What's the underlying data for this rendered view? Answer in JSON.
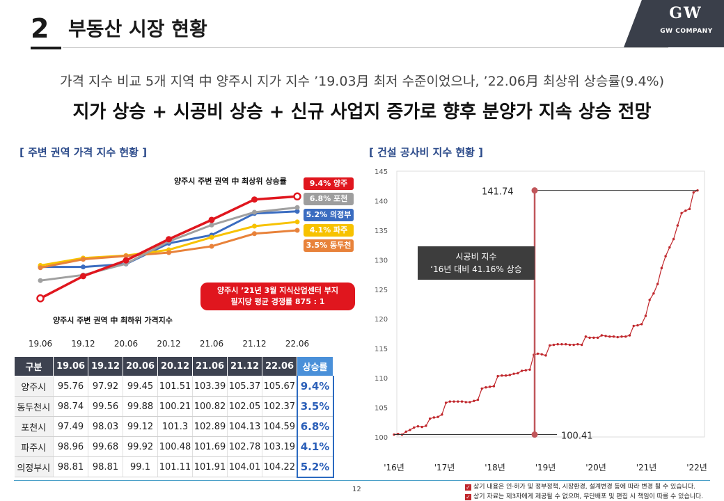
{
  "header": {
    "section_number": "2",
    "section_title": "부동산 시장 현황",
    "logo_mark": "GW",
    "logo_text": "GW COMPANY"
  },
  "summary": {
    "line1": "가격 지수 비교 5개 지역 中 양주시 지가 지수 ’19.03月 최저 수준이었으나, ’22.06月 최상위 상승률(9.4%)",
    "line2": "지가 상승 + 시공비 상승 + 신규 사업지 증가로 향후 분양가 지속 상승 전망"
  },
  "left_section": {
    "label": "[ 주변 권역 가격 지수 현황 ]",
    "annotation_top": "양주시 주변 권역 中 최상위 상승률",
    "annotation_bottom": "양주시 주변 권역 中 최하위 가격지수",
    "red_box_line1": "양주시 ’21년 3월 지식산업센터 부지",
    "red_box_line2": "필지당 평균 경쟁률 875 : 1",
    "callouts": [
      {
        "text": "9.4% 양주",
        "color": "#e0161e"
      },
      {
        "text": "6.8% 포천",
        "color": "#9e9e9e"
      },
      {
        "text": "5.2% 의정부",
        "color": "#3a6cc0"
      },
      {
        "text": "4.1% 파주",
        "color": "#f7c200"
      },
      {
        "text": "3.5% 동두천",
        "color": "#e8823a"
      }
    ]
  },
  "chart_data": [
    {
      "type": "line",
      "title": "주변 권역 가격 지수 현황",
      "categories": [
        "19.06",
        "19.12",
        "20.06",
        "20.12",
        "21.06",
        "21.12",
        "22.06"
      ],
      "series": [
        {
          "name": "양주시",
          "color": "#e0161e",
          "values": [
            95.76,
            97.92,
            99.45,
            101.51,
            103.39,
            105.37,
            105.67
          ]
        },
        {
          "name": "동두천시",
          "color": "#e8823a",
          "values": [
            98.74,
            99.56,
            99.88,
            100.21,
            100.82,
            102.05,
            102.37
          ]
        },
        {
          "name": "포천시",
          "color": "#a0a0a0",
          "values": [
            97.49,
            98.03,
            99.12,
            101.3,
            102.89,
            104.13,
            104.59
          ]
        },
        {
          "name": "파주시",
          "color": "#f7c200",
          "values": [
            98.96,
            99.68,
            99.92,
            100.48,
            101.69,
            102.78,
            103.19
          ]
        },
        {
          "name": "의정부시",
          "color": "#3a6cc0",
          "values": [
            98.81,
            98.81,
            99.1,
            101.11,
            101.91,
            104.01,
            104.22
          ]
        }
      ],
      "ylim": [
        95,
        106.5
      ]
    },
    {
      "type": "line",
      "title": "건설 공사비 지수 현황",
      "x_labels": [
        "'16년",
        "'17년",
        "'18년",
        "'19년",
        "'20년",
        "'21년",
        "'22년"
      ],
      "y_ticks": [
        "145",
        "140",
        "135",
        "130",
        "125",
        "120",
        "115",
        "110",
        "105",
        "100"
      ],
      "ylim": [
        100,
        145
      ],
      "series": [
        {
          "name": "건설 공사비 지수",
          "color": "#c0262b",
          "values": [
            100.41,
            100.5,
            100.4,
            100.9,
            101.2,
            101.6,
            101.8,
            101.7,
            101.9,
            103.1,
            103.3,
            103.4,
            103.8,
            105.8,
            106.0,
            106.0,
            106.0,
            106.0,
            105.9,
            105.9,
            106.1,
            106.3,
            108.2,
            108.4,
            108.5,
            108.6,
            110.3,
            110.4,
            110.4,
            110.5,
            110.7,
            110.8,
            111.2,
            111.3,
            111.4,
            113.9,
            114.1,
            114.0,
            113.8,
            115.5,
            115.6,
            115.7,
            115.7,
            115.7,
            115.6,
            115.6,
            115.7,
            115.6,
            117.0,
            116.8,
            116.8,
            116.8,
            117.2,
            117.1,
            117.0,
            117.0,
            116.9,
            117.0,
            117.0,
            117.2,
            118.8,
            118.9,
            119.1,
            120.5,
            123.2,
            124.3,
            125.9,
            128.6,
            130.6,
            132.1,
            133.5,
            135.8,
            137.9,
            138.3,
            138.6,
            141.4,
            141.74
          ]
        }
      ],
      "annotations": {
        "max_value": "141.74",
        "min_value": "100.41",
        "box_line1": "시공비 지수",
        "box_line2": "‘16년 대비 41.16% 상승"
      }
    }
  ],
  "table": {
    "headers": [
      "구분",
      "19.06",
      "19.12",
      "20.06",
      "20.12",
      "21.06",
      "21.12",
      "22.06",
      "상승률"
    ],
    "rows": [
      {
        "name": "양주시",
        "values": [
          "95.76",
          "97.92",
          "99.45",
          "101.51",
          "103.39",
          "105.37",
          "105.67"
        ],
        "rate": "9.4%"
      },
      {
        "name": "동두천시",
        "values": [
          "98.74",
          "99.56",
          "99.88",
          "100.21",
          "100.82",
          "102.05",
          "102.37"
        ],
        "rate": "3.5%"
      },
      {
        "name": "포천시",
        "values": [
          "97.49",
          "98.03",
          "99.12",
          "101.3",
          "102.89",
          "104.13",
          "104.59"
        ],
        "rate": "6.8%"
      },
      {
        "name": "파주시",
        "values": [
          "98.96",
          "99.68",
          "99.92",
          "100.48",
          "101.69",
          "102.78",
          "103.19"
        ],
        "rate": "4.1%"
      },
      {
        "name": "의정부시",
        "values": [
          "98.81",
          "98.81",
          "99.1",
          "101.11",
          "101.91",
          "104.01",
          "104.22"
        ],
        "rate": "5.2%"
      }
    ]
  },
  "right_section": {
    "label": "[ 건설 공사비 지수 현황 ]"
  },
  "footer": {
    "page_number": "12",
    "note1": "상기 내용은 인·허가 및 정부정책, 시장환경, 설계변경 등에 따라 변경  될 수 있습니다.",
    "note2": "상기 자료는 제3자에게 제공될 수 없으며, 무단배포 및 편집 시 책임이 따를 수 있습니다."
  }
}
